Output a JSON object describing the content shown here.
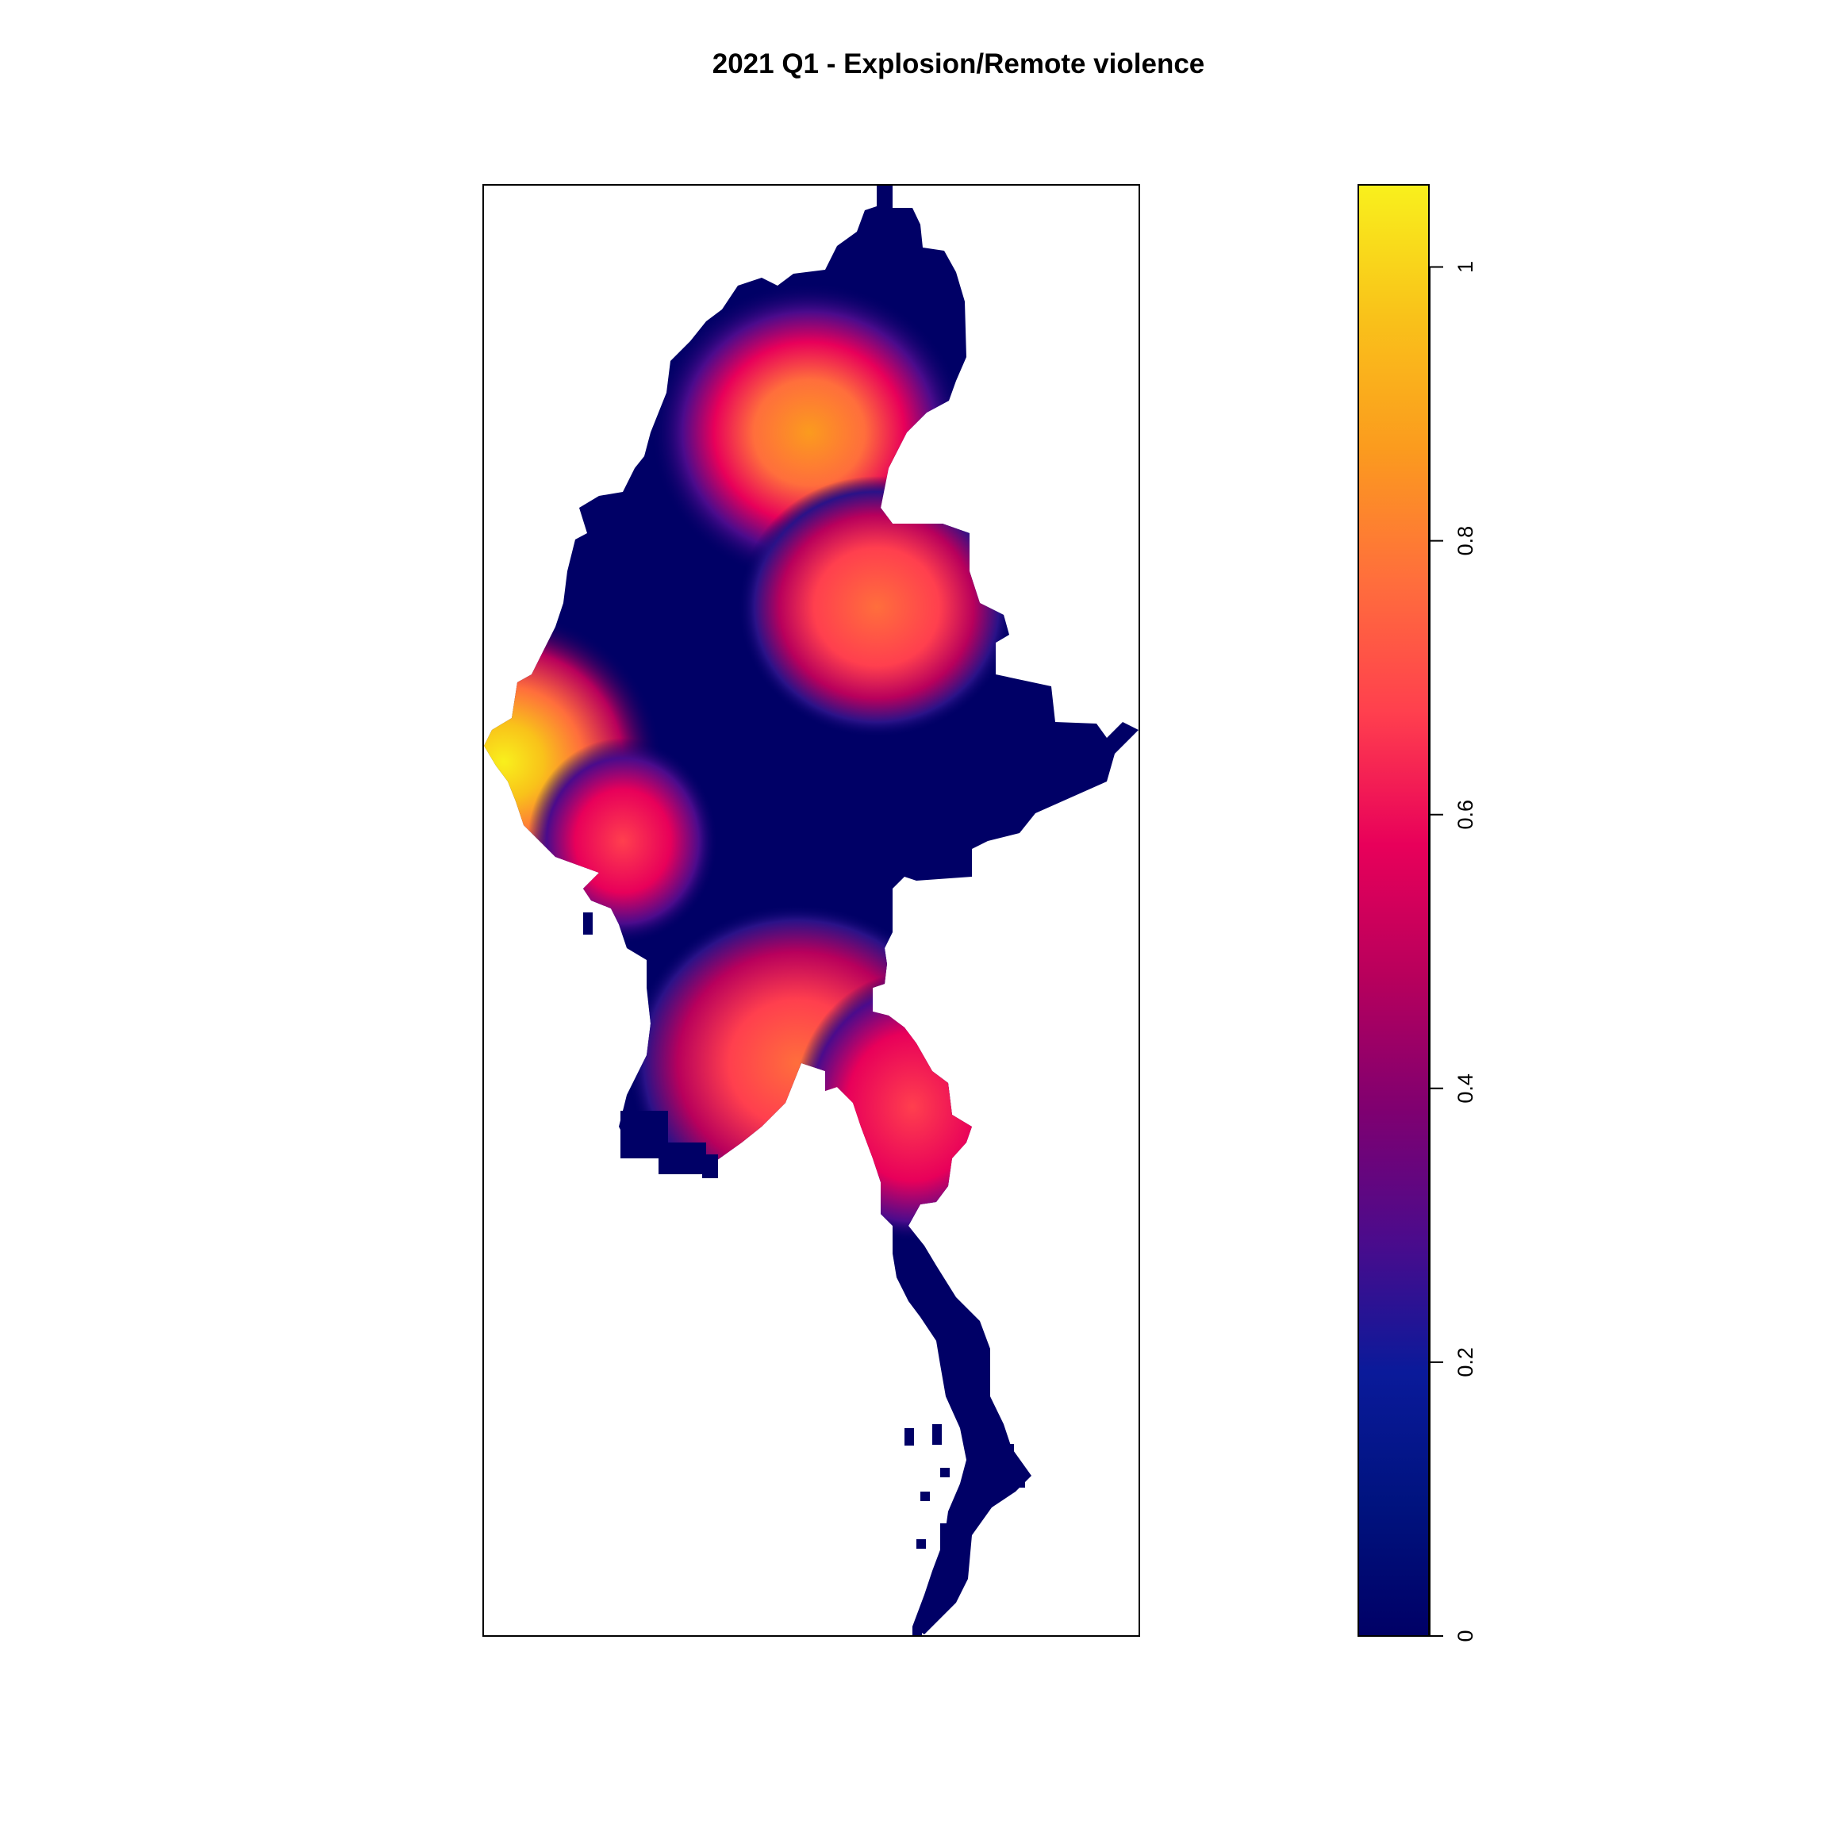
{
  "title": "2021 Q1 - Explosion/Remote violence",
  "legend": {
    "min": 0,
    "max": 1.06,
    "ticks": [
      {
        "value": 0,
        "label": "0"
      },
      {
        "value": 0.2,
        "label": "0.2"
      },
      {
        "value": 0.4,
        "label": "0.4"
      },
      {
        "value": 0.6,
        "label": "0.6"
      },
      {
        "value": 0.8,
        "label": "0.8"
      },
      {
        "value": 1,
        "label": "1"
      }
    ],
    "palette": [
      "#000066",
      "#00137F",
      "#0A1A9A",
      "#4B0B8C",
      "#800070",
      "#B8005C",
      "#E8005A",
      "#FF3F4E",
      "#FF6E3C",
      "#FB9B1E",
      "#F9C21A",
      "#F9F01C"
    ]
  },
  "map_data": {
    "region": "Myanmar",
    "background_color": "#000066",
    "hotspots": [
      {
        "name": "north",
        "peak_value": 0.82
      },
      {
        "name": "north-central",
        "peak_value": 0.72
      },
      {
        "name": "west-coast",
        "peak_value": 1.05
      },
      {
        "name": "west-central",
        "peak_value": 0.65
      },
      {
        "name": "south-central",
        "peak_value": 0.72
      },
      {
        "name": "east-southeast",
        "peak_value": 0.62
      }
    ]
  }
}
